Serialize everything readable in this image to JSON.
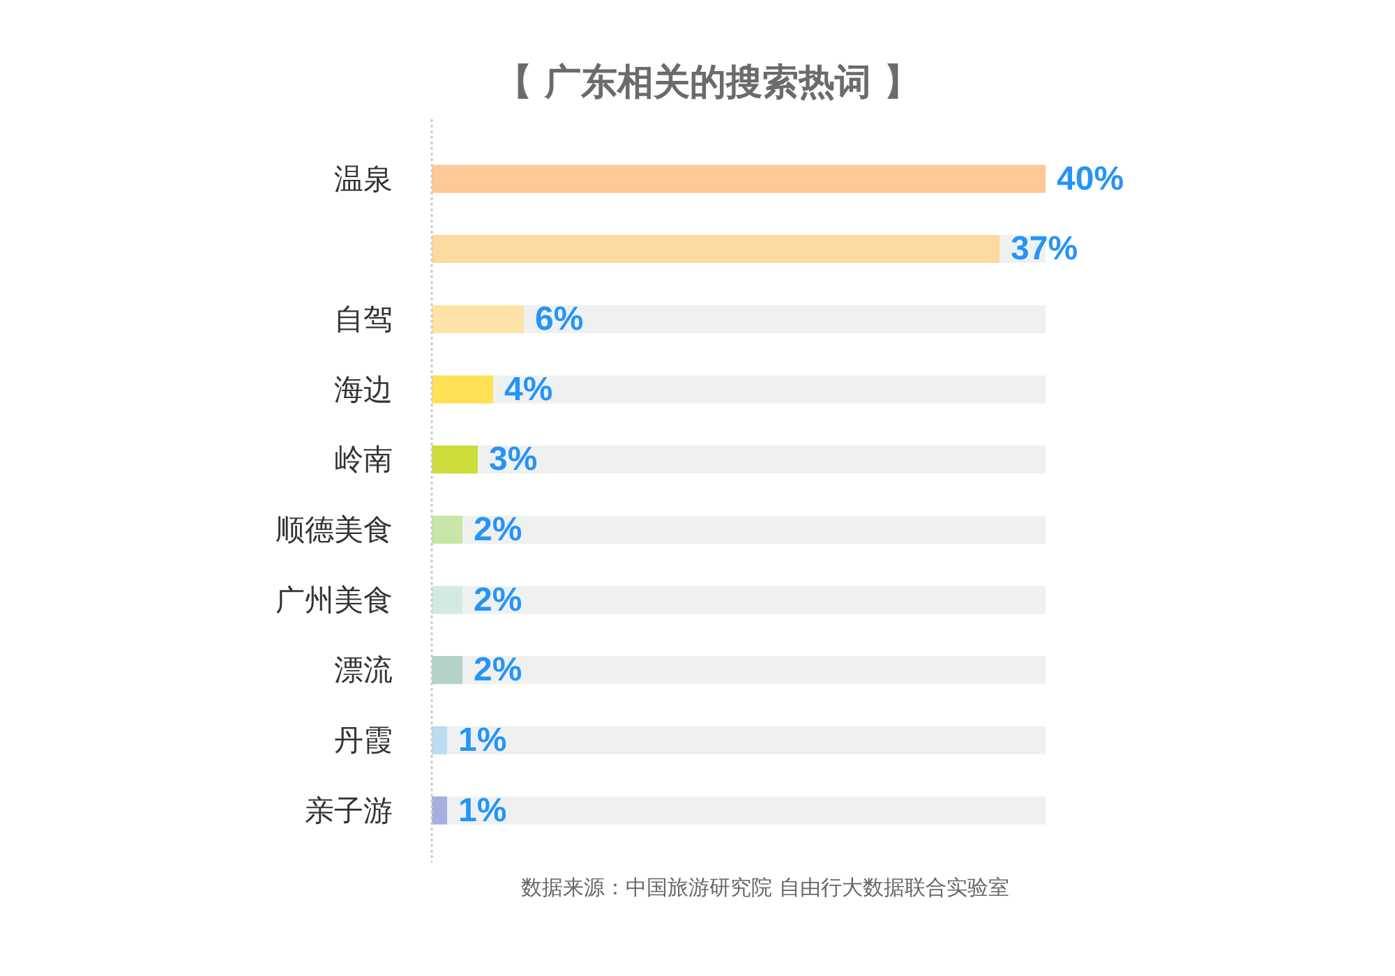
{
  "chart_data": {
    "type": "bar",
    "orientation": "horizontal",
    "stacked": true,
    "title": "【 广东相关的搜索热词 】",
    "categories": [
      "温泉",
      null,
      "自驾",
      "海边",
      "岭南",
      "顺德美食",
      "广州美食",
      "漂流",
      "丹霞",
      "亲子游"
    ],
    "series": [
      {
        "colors": [
          "#fec897",
          "#fcd99f",
          "#fde3a7",
          "#ffe156",
          "#cddc3b",
          "#c8e6a7",
          "#d3eae3",
          "#b2d3c5",
          "#badcf2",
          "#a4b0dd"
        ],
        "values": [
          40,
          37,
          6,
          4,
          3,
          2,
          2,
          2,
          1,
          1
        ],
        "value_labels": [
          "40%",
          "37%",
          "6%",
          "4%",
          "3%",
          "2%",
          "2%",
          "2%",
          "1%",
          "1%"
        ]
      },
      {
        "color": "#eff1f0",
        "values": [
          null,
          3,
          34,
          36,
          37,
          38,
          38,
          38,
          39,
          39
        ]
      }
    ],
    "annotations": [
      "数据来源：中国旅游研究院 自由行大数据联合实验室"
    ]
  }
}
